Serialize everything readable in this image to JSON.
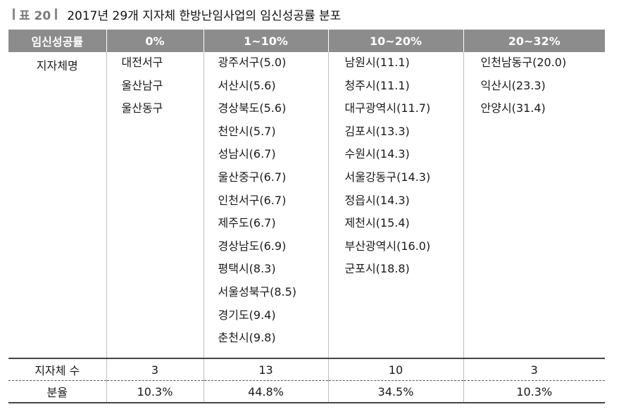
{
  "caption": {
    "label": "표 20",
    "title": "2017년 29개 지자체 한방난임사업의 임신성공률 분포"
  },
  "table": {
    "headers": [
      "임신성공률",
      "0%",
      "1~10%",
      "10~20%",
      "20~32%"
    ],
    "row_header": "지자체명",
    "columns": [
      [
        "대전서구",
        "울산남구",
        "울산동구"
      ],
      [
        "광주서구(5.0)",
        "서산시(5.6)",
        "경상북도(5.6)",
        "천안시(5.7)",
        "성남시(6.7)",
        "울산중구(6.7)",
        "인천서구(6.7)",
        "제주도(6.7)",
        "경상남도(6.9)",
        "평택시(8.3)",
        "서울성북구(8.5)",
        "경기도(9.4)",
        "춘천시(9.8)"
      ],
      [
        "남원시(11.1)",
        "청주시(11.1)",
        "대구광역시(11.7)",
        "김포시(13.3)",
        "수원시(14.3)",
        "서울강동구(14.3)",
        "정읍시(14.3)",
        "제천시(15.4)",
        "부산광역시(16.0)",
        "군포시(18.8)"
      ],
      [
        "인천남동구(20.0)",
        "익산시(23.3)",
        "안양시(31.4)"
      ]
    ],
    "count_row": {
      "label": "지자체 수",
      "values": [
        "3",
        "13",
        "10",
        "3"
      ]
    },
    "ratio_row": {
      "label": "분율",
      "values": [
        "10.3%",
        "44.8%",
        "34.5%",
        "10.3%"
      ]
    }
  }
}
